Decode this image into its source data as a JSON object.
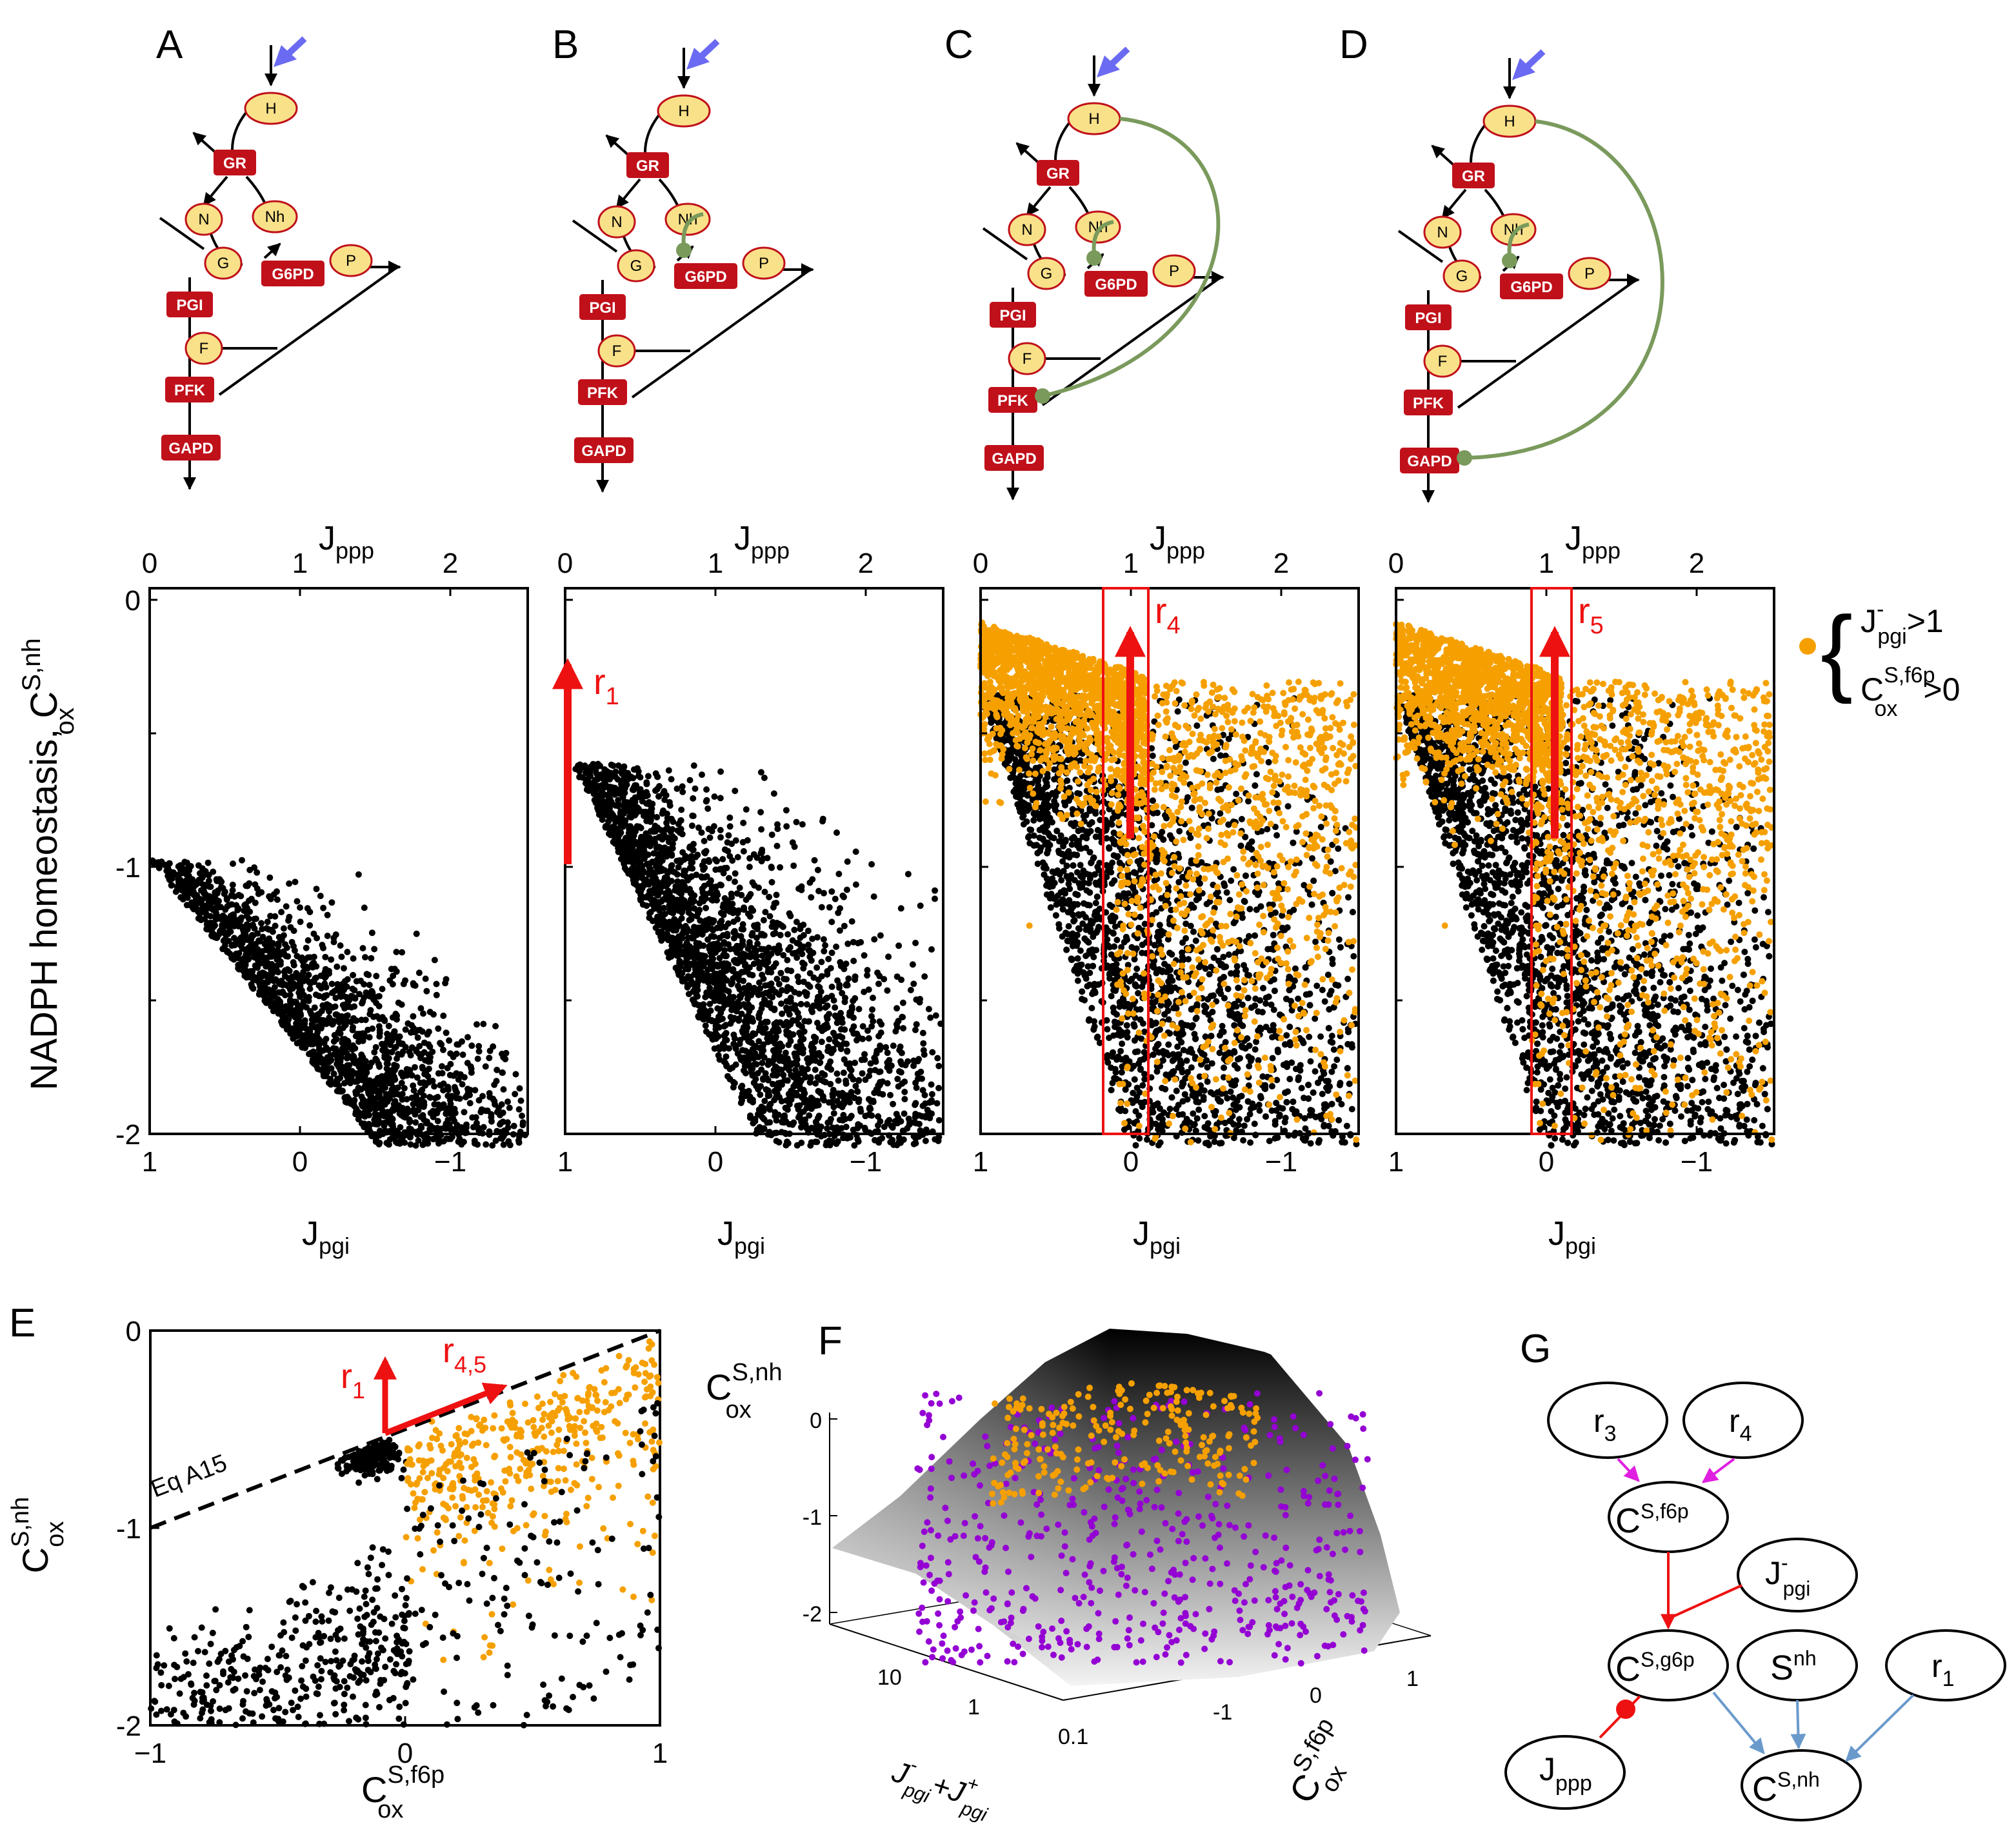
{
  "panels": {
    "A": "A",
    "B": "B",
    "C": "C",
    "D": "D",
    "E": "E",
    "F": "F",
    "G": "G"
  },
  "network": {
    "nodes": {
      "H": "H",
      "N": "N",
      "Nh": "Nh",
      "G": "G",
      "P": "P",
      "F": "F"
    },
    "enzymes": {
      "GR": "GR",
      "G6PD": "G6PD",
      "PGI": "PGI",
      "PFK": "PFK",
      "GAPD": "GAPD"
    }
  },
  "colors": {
    "point_black": "#000000",
    "point_orange": "#f5a000",
    "point_purple": "#9400d3",
    "arrow_red": "#ee1111",
    "enzyme_red": "#c0101a",
    "metabolite_fill": "#f9e18a",
    "metabolite_stroke": "#c0101a",
    "feedback_green": "#7a9a5c",
    "input_arrow_blue": "#6a6af2",
    "graph_magenta": "#e020e0",
    "graph_blue": "#6a9acc"
  },
  "axes_row": {
    "top_label_main": "J",
    "top_label_sub": "ppp",
    "top_ticks": [
      "0",
      "1",
      "2"
    ],
    "bottom_label_main": "J",
    "bottom_label_sub": "pgi",
    "bottom_ticks": [
      "1",
      "0",
      "−1"
    ],
    "y_label": "NADPH homeostasis, C",
    "y_label_sub": "ox",
    "y_label_sup": "S,nh",
    "y_ticks": [
      "0",
      "-1",
      "-2"
    ]
  },
  "annotations": {
    "r1": "r",
    "r1_sub": "1",
    "r4": "r",
    "r4_sub": "4",
    "r5": "r",
    "r5_sub": "5"
  },
  "legend": {
    "line1_main": "J",
    "line1_sup": "-",
    "line1_sub": "pgi",
    "line1_rest": ">1",
    "line2_main": "C",
    "line2_sup": "S,f6p",
    "line2_sub": "ox",
    "line2_rest": ">0"
  },
  "panelE": {
    "x_ticks": [
      "−1",
      "0",
      "1"
    ],
    "y_ticks": [
      "0",
      "-1",
      "-2"
    ],
    "x_label_main": "C",
    "x_label_sup": "S,f6p",
    "x_label_sub": "ox",
    "y_label_main": "C",
    "y_label_sup": "S,nh",
    "y_label_sub": "ox",
    "eq_label": "Eq A15",
    "r1": "r",
    "r1_sub": "1",
    "r45": "r",
    "r45_sub": "4,5"
  },
  "panelF": {
    "z_label_main": "C",
    "z_label_sup": "S,nh",
    "z_label_sub": "ox",
    "z_ticks": [
      "0",
      "-1",
      "-2"
    ],
    "left_ticks": [
      "10",
      "1",
      "0.1"
    ],
    "right_ticks": [
      "-1",
      "0",
      "1"
    ],
    "left_label": "J⁻ₚₗᵢ + J⁺",
    "left_label_a": "J",
    "left_label_a_sup": "-",
    "left_label_a_sub": "pgi",
    "left_label_b": "+J",
    "left_label_b_sup": "+",
    "left_label_b_sub": "pgi",
    "right_label_main": "C",
    "right_label_sup": "S,f6p",
    "right_label_sub": "ox"
  },
  "panelG": {
    "r3": "r",
    "r3_sub": "3",
    "r4": "r",
    "r4_sub": "4",
    "cf6p": "C",
    "cf6p_sup": "S,f6p",
    "jpgi": "J",
    "jpgi_sup": "-",
    "jpgi_sub": "pgi",
    "cg6p": "C",
    "cg6p_sup": "S,g6p",
    "snh": "S",
    "snh_sup": "nh",
    "r1": "r",
    "r1_sub": "1",
    "jppp": "J",
    "jppp_sub": "ppp",
    "cnh": "C",
    "cnh_sup": "S,nh"
  },
  "chart_data": [
    {
      "type": "scatter",
      "panel": "A",
      "xlabel": "J_pgi",
      "x2label": "J_ppp",
      "ylabel": "NADPH homeostasis, C_ox^S,nh",
      "xlim": [
        1,
        -1.5
      ],
      "ylim": [
        -2,
        0
      ],
      "series": [
        {
          "name": "",
          "color": "#000000",
          "description": "dense cloud from (1,-0.95) spreading down to (-0.5,-2)"
        }
      ]
    },
    {
      "type": "scatter",
      "panel": "B",
      "xlabel": "J_pgi",
      "x2label": "J_ppp",
      "xlim": [
        1,
        -1.5
      ],
      "ylim": [
        -2,
        0
      ],
      "series": [
        {
          "name": "",
          "color": "#000000",
          "description": "cloud starting near (0.95,-0.6) fanning to -2"
        }
      ]
    },
    {
      "type": "scatter",
      "panel": "C",
      "xlabel": "J_pgi",
      "x2label": "J_ppp",
      "xlim": [
        1,
        -1.5
      ],
      "ylim": [
        -2,
        0
      ],
      "series": [
        {
          "name": "",
          "color": "#000000"
        },
        {
          "name": "J-pgi>1, Cox S,f6p>0",
          "color": "#f5a000",
          "description": "orange cloud near top between -0.1 and -0.7"
        }
      ]
    },
    {
      "type": "scatter",
      "panel": "D",
      "xlabel": "J_pgi",
      "x2label": "J_ppp",
      "xlim": [
        1,
        -1.5
      ],
      "ylim": [
        -2,
        0
      ],
      "series": [
        {
          "name": "",
          "color": "#000000"
        },
        {
          "name": "J-pgi>1, Cox S,f6p>0",
          "color": "#f5a000"
        }
      ]
    },
    {
      "type": "scatter",
      "panel": "E",
      "xlabel": "C_ox^S,f6p",
      "ylabel": "C_ox^S,nh",
      "xlim": [
        -1,
        1
      ],
      "ylim": [
        -2,
        0
      ],
      "series": [
        {
          "name": "",
          "color": "#000000"
        },
        {
          "name": "",
          "color": "#f5a000"
        }
      ],
      "annotations": [
        {
          "label": "Eq A15",
          "line": "y = -1 + x/2 (dashed)"
        }
      ]
    },
    {
      "type": "scatter",
      "panel": "F",
      "description": "3D surface with scatter points",
      "series": [
        {
          "name": "",
          "color": "#f5a000"
        },
        {
          "name": "",
          "color": "#9400d3"
        }
      ]
    }
  ]
}
